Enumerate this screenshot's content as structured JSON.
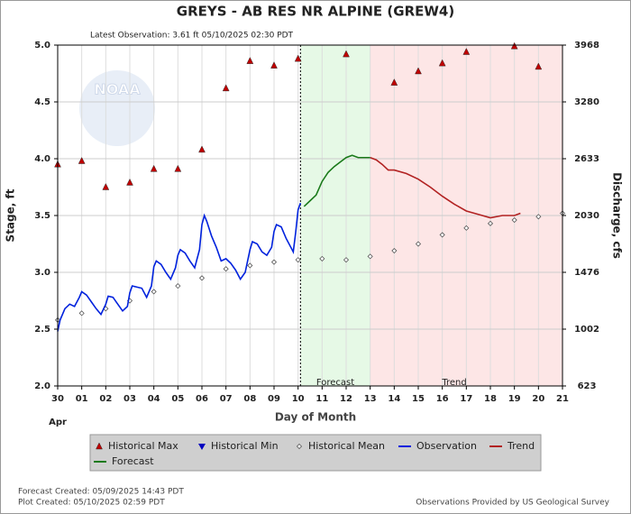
{
  "chart_data": {
    "type": "line",
    "title": "GREYS - AB RES NR ALPINE  (GREW4)",
    "subtitle": "Latest Observation: 3.61 ft 05/10/2025 02:30 PDT",
    "watermark": "NOAA",
    "xlabel": "Day of Month",
    "xlabel_month": "Apr",
    "ylabel": "Stage, ft",
    "y2label": "Discharge, cfs",
    "xlim": [
      0,
      21
    ],
    "xticks": [
      {
        "value": 0,
        "label": "30"
      },
      {
        "value": 1,
        "label": "01"
      },
      {
        "value": 2,
        "label": "02"
      },
      {
        "value": 3,
        "label": "03"
      },
      {
        "value": 4,
        "label": "04"
      },
      {
        "value": 5,
        "label": "05"
      },
      {
        "value": 6,
        "label": "06"
      },
      {
        "value": 7,
        "label": "07"
      },
      {
        "value": 8,
        "label": "08"
      },
      {
        "value": 9,
        "label": "09"
      },
      {
        "value": 10,
        "label": "10"
      },
      {
        "value": 11,
        "label": "11"
      },
      {
        "value": 12,
        "label": "12"
      },
      {
        "value": 13,
        "label": "13"
      },
      {
        "value": 14,
        "label": "14"
      },
      {
        "value": 15,
        "label": "15"
      },
      {
        "value": 16,
        "label": "16"
      },
      {
        "value": 17,
        "label": "17"
      },
      {
        "value": 18,
        "label": "18"
      },
      {
        "value": 19,
        "label": "19"
      },
      {
        "value": 20,
        "label": "20"
      },
      {
        "value": 21,
        "label": "21"
      }
    ],
    "ylim": [
      2,
      5
    ],
    "yticks": [
      {
        "value": 2,
        "label": "2.0"
      },
      2.5,
      {
        "value": 3,
        "label": "3.0"
      },
      3.5,
      {
        "value": 4,
        "label": "4.0"
      },
      4.5,
      {
        "value": 5,
        "label": "5.0"
      }
    ],
    "y2lim": [
      623,
      3968
    ],
    "y2ticks": [
      623,
      1002,
      1476,
      2030,
      2633,
      3280,
      3968
    ],
    "grid": true,
    "regions": [
      {
        "label": "Forecast",
        "start": 10.1,
        "end": 13,
        "color": "#e6f9e6"
      },
      {
        "label": "Trend",
        "start": 13,
        "end": 21,
        "color": "#fde6e6"
      }
    ],
    "series": [
      {
        "name": "Historical Max",
        "color": "#c00000",
        "marker": "triangle-up",
        "x": [
          0,
          1,
          2,
          3,
          4,
          5,
          6,
          7,
          8,
          9,
          10,
          12,
          14,
          15,
          16,
          17,
          19,
          20
        ],
        "values": [
          3.95,
          3.98,
          3.75,
          3.79,
          3.91,
          3.91,
          4.08,
          4.62,
          4.86,
          4.82,
          4.88,
          4.92,
          4.67,
          4.77,
          4.84,
          4.94,
          4.99,
          4.81
        ]
      },
      {
        "name": "Historical Min",
        "color": "#0000c0",
        "marker": "triangle-down",
        "x": [],
        "values": []
      },
      {
        "name": "Historical Mean",
        "color": "#555555",
        "marker": "diamond",
        "x": [
          0,
          1,
          2,
          3,
          4,
          5,
          6,
          7,
          8,
          9,
          10,
          11,
          12,
          13,
          14,
          15,
          16,
          17,
          18,
          19,
          20,
          21
        ],
        "values": [
          2.58,
          2.64,
          2.68,
          2.75,
          2.83,
          2.88,
          2.95,
          3.03,
          3.06,
          3.09,
          3.11,
          3.12,
          3.11,
          3.14,
          3.19,
          3.25,
          3.33,
          3.39,
          3.43,
          3.46,
          3.49,
          3.52
        ]
      },
      {
        "name": "Observation",
        "color": "#0022dd",
        "marker": "line",
        "x": [
          0,
          0.1,
          0.3,
          0.5,
          0.7,
          0.9,
          1.0,
          1.2,
          1.4,
          1.6,
          1.8,
          2.0,
          2.1,
          2.3,
          2.5,
          2.7,
          2.9,
          3.0,
          3.1,
          3.3,
          3.5,
          3.7,
          3.9,
          4.0,
          4.1,
          4.3,
          4.5,
          4.7,
          4.9,
          5.0,
          5.1,
          5.3,
          5.5,
          5.7,
          5.9,
          6.0,
          6.1,
          6.2,
          6.4,
          6.6,
          6.8,
          7.0,
          7.2,
          7.4,
          7.6,
          7.8,
          8.0,
          8.1,
          8.3,
          8.5,
          8.7,
          8.9,
          9.0,
          9.1,
          9.3,
          9.5,
          9.7,
          9.8,
          9.9,
          10.0,
          10.1
        ],
        "values": [
          2.48,
          2.58,
          2.68,
          2.72,
          2.7,
          2.78,
          2.83,
          2.8,
          2.74,
          2.68,
          2.63,
          2.72,
          2.79,
          2.78,
          2.72,
          2.66,
          2.7,
          2.82,
          2.88,
          2.87,
          2.86,
          2.78,
          2.88,
          3.05,
          3.1,
          3.07,
          3.0,
          2.94,
          3.04,
          3.15,
          3.2,
          3.17,
          3.1,
          3.04,
          3.2,
          3.42,
          3.5,
          3.45,
          3.32,
          3.22,
          3.1,
          3.12,
          3.08,
          3.02,
          2.94,
          3.0,
          3.2,
          3.27,
          3.25,
          3.18,
          3.15,
          3.22,
          3.36,
          3.42,
          3.4,
          3.3,
          3.22,
          3.18,
          3.35,
          3.55,
          3.61
        ]
      },
      {
        "name": "Trend",
        "color": "#b22222",
        "marker": "line",
        "x": [
          13.0,
          13.25,
          13.5,
          13.75,
          14,
          14.5,
          15,
          15.5,
          16,
          16.5,
          17,
          17.5,
          18,
          18.5,
          19,
          19.25
        ],
        "values": [
          4.01,
          3.99,
          3.95,
          3.9,
          3.9,
          3.87,
          3.82,
          3.75,
          3.67,
          3.6,
          3.54,
          3.51,
          3.48,
          3.5,
          3.5,
          3.52
        ]
      },
      {
        "name": "Forecast",
        "color": "#1a7a1a",
        "marker": "line",
        "x": [
          10.25,
          10.5,
          10.75,
          11.0,
          11.25,
          11.5,
          11.75,
          12.0,
          12.25,
          12.5,
          12.75,
          13.0
        ],
        "values": [
          3.58,
          3.63,
          3.68,
          3.8,
          3.88,
          3.93,
          3.97,
          4.01,
          4.03,
          4.01,
          4.01,
          4.01
        ]
      }
    ],
    "footer_left": [
      "Forecast Created: 05/09/2025 14:43 PDT",
      "Plot Created: 05/10/2025 02:59 PDT"
    ],
    "footer_right": "Observations Provided by US Geological Survey"
  }
}
